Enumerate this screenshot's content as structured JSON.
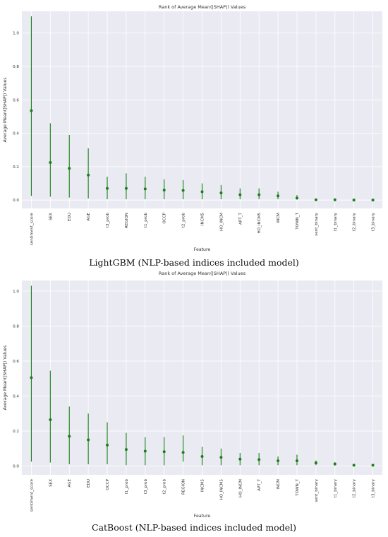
{
  "chart_data": [
    {
      "type": "scatter",
      "title": "Rank of Average Mean(|SHAP|) Values",
      "xlabel": "Feature",
      "ylabel": "Average Mean(|SHAP|) Values",
      "ylim": [
        -0.05,
        1.13
      ],
      "yticks": [
        "0.0",
        "0.2",
        "0.4",
        "0.6",
        "0.8",
        "1.0"
      ],
      "grid": true,
      "caption": "LightGBM (NLP-based indices included model)",
      "color": "#1a7f1a",
      "categories": [
        "sentiment_score",
        "SEX",
        "EDU",
        "AGE",
        "t3_prob",
        "REGION",
        "t1_prob",
        "OCCP",
        "t2_prob",
        "INCM5",
        "HO_INCM",
        "APT_T",
        "HO_INCM5",
        "INCM",
        "TOWN_T",
        "sent_binary",
        "t1_binary",
        "t2_binary",
        "t3_binary"
      ],
      "values": [
        0.535,
        0.225,
        0.19,
        0.15,
        0.07,
        0.07,
        0.067,
        0.06,
        0.058,
        0.05,
        0.043,
        0.032,
        0.032,
        0.025,
        0.012,
        0.002,
        0.002,
        0.0,
        0.0
      ],
      "lower": [
        0.025,
        0.02,
        0.015,
        0.01,
        0.005,
        0.005,
        0.005,
        0.005,
        0.005,
        0.005,
        0.005,
        0.005,
        0.005,
        0.005,
        0.003,
        0.0,
        0.0,
        0.0,
        0.0
      ],
      "upper": [
        1.1,
        0.46,
        0.39,
        0.31,
        0.14,
        0.16,
        0.14,
        0.125,
        0.12,
        0.1,
        0.09,
        0.07,
        0.07,
        0.05,
        0.03,
        0.004,
        0.004,
        0.002,
        0.002
      ]
    },
    {
      "type": "scatter",
      "title": "Rank of Average Mean(|SHAP|) Values",
      "xlabel": "Feature",
      "ylabel": "Average Mean(|SHAP|) Values",
      "ylim": [
        -0.05,
        1.06
      ],
      "yticks": [
        "0.0",
        "0.2",
        "0.4",
        "0.6",
        "0.8",
        "1.0"
      ],
      "grid": true,
      "caption": "CatBoost (NLP-based indices included model)",
      "color": "#1a7f1a",
      "categories": [
        "sentiment_score",
        "SEX",
        "AGE",
        "EDU",
        "OCCP",
        "t1_prob",
        "t3_prob",
        "t2_prob",
        "REGION",
        "INCM5",
        "HO_INCM5",
        "HO_INCM",
        "APT_T",
        "INCM",
        "TOWN_T",
        "sent_binary",
        "t1_binary",
        "t2_binary",
        "t3_binary"
      ],
      "values": [
        0.505,
        0.265,
        0.17,
        0.15,
        0.12,
        0.095,
        0.085,
        0.082,
        0.078,
        0.055,
        0.05,
        0.04,
        0.037,
        0.03,
        0.03,
        0.018,
        0.012,
        0.005,
        0.005
      ],
      "lower": [
        0.025,
        0.02,
        0.01,
        0.01,
        0.01,
        0.005,
        0.005,
        0.005,
        0.025,
        0.005,
        0.005,
        0.005,
        0.005,
        0.005,
        0.005,
        0.005,
        0.003,
        0.002,
        0.002
      ],
      "upper": [
        1.03,
        0.545,
        0.34,
        0.3,
        0.25,
        0.19,
        0.165,
        0.165,
        0.175,
        0.11,
        0.1,
        0.075,
        0.075,
        0.055,
        0.065,
        0.032,
        0.022,
        0.008,
        0.008
      ]
    }
  ]
}
